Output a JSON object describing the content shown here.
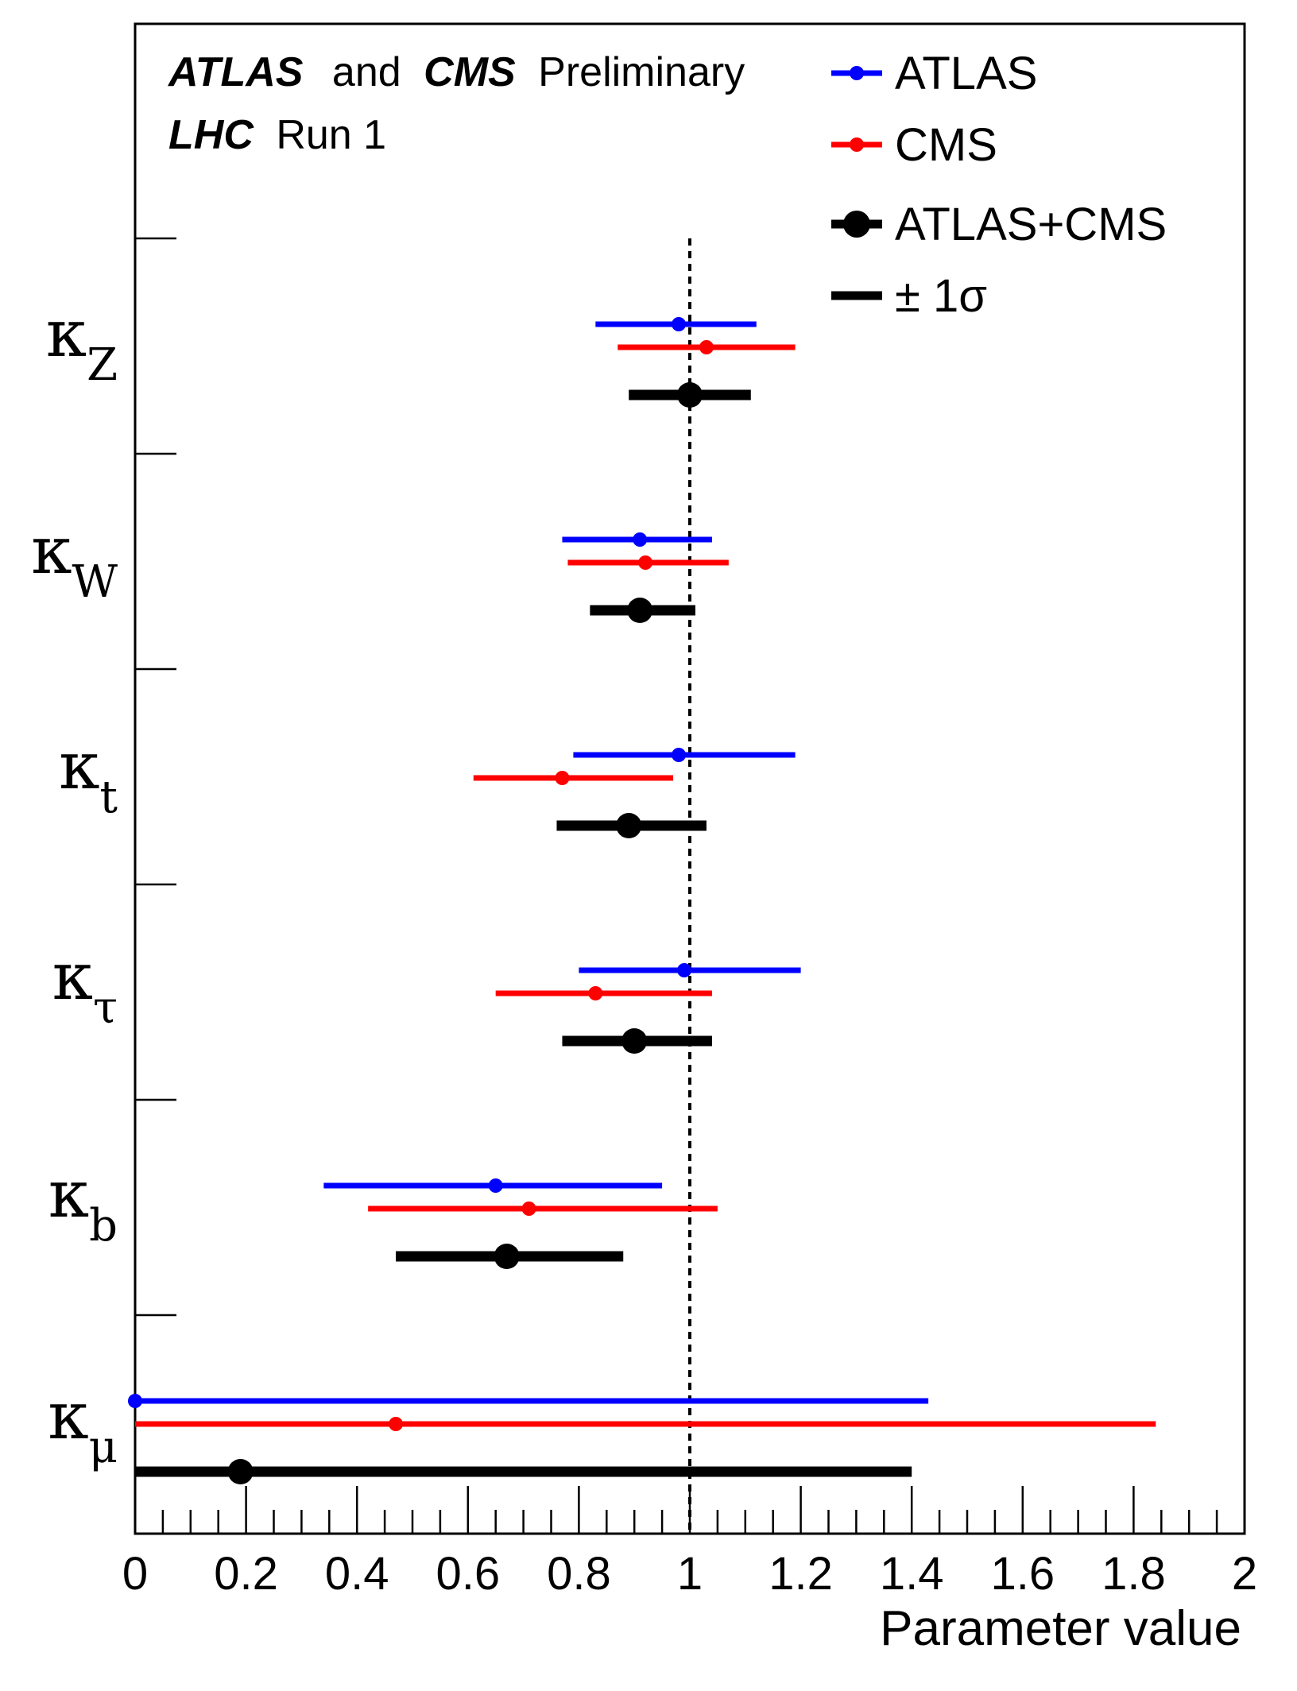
{
  "header": {
    "line1": {
      "atlas": "ATLAS",
      "and": "and",
      "cms": "CMS",
      "preliminary": "Preliminary"
    },
    "line2": {
      "lhc": "LHC",
      "run": "Run 1"
    }
  },
  "legend": [
    {
      "label": "ATLAS",
      "color": "#0000ff"
    },
    {
      "label": "CMS",
      "color": "#ff0000"
    },
    {
      "label": "ATLAS+CMS",
      "color": "#000000"
    },
    {
      "label": "± 1σ",
      "color": "#000000"
    }
  ],
  "chart_data": {
    "type": "scatter",
    "style": "horizontal error bars per parameter",
    "xlabel": "Parameter value",
    "xlim": [
      0,
      2
    ],
    "x_ticks": [
      "0",
      "0.2",
      "0.4",
      "0.6",
      "0.8",
      "1",
      "1.2",
      "1.4",
      "1.6",
      "1.8",
      "2"
    ],
    "reference_line": 1,
    "categories": [
      {
        "symbol": "κ",
        "sub": "Z"
      },
      {
        "symbol": "κ",
        "sub": "W"
      },
      {
        "symbol": "κ",
        "sub": "t"
      },
      {
        "symbol": "κ",
        "sub": "τ"
      },
      {
        "symbol": "κ",
        "sub": "b"
      },
      {
        "symbol": "κ",
        "sub": "μ"
      }
    ],
    "series": [
      {
        "name": "ATLAS",
        "color": "#0000ff",
        "points": [
          {
            "value": 0.98,
            "lo": 0.83,
            "hi": 1.12
          },
          {
            "value": 0.91,
            "lo": 0.77,
            "hi": 1.04
          },
          {
            "value": 0.98,
            "lo": 0.79,
            "hi": 1.19
          },
          {
            "value": 0.99,
            "lo": 0.8,
            "hi": 1.2
          },
          {
            "value": 0.65,
            "lo": 0.34,
            "hi": 0.95
          },
          {
            "value": 0.0,
            "lo": 0.0,
            "hi": 1.43
          }
        ]
      },
      {
        "name": "CMS",
        "color": "#ff0000",
        "points": [
          {
            "value": 1.03,
            "lo": 0.87,
            "hi": 1.19
          },
          {
            "value": 0.92,
            "lo": 0.78,
            "hi": 1.07
          },
          {
            "value": 0.77,
            "lo": 0.61,
            "hi": 0.97
          },
          {
            "value": 0.83,
            "lo": 0.65,
            "hi": 1.04
          },
          {
            "value": 0.71,
            "lo": 0.42,
            "hi": 1.05
          },
          {
            "value": 0.47,
            "lo": 0.0,
            "hi": 1.84
          }
        ]
      },
      {
        "name": "ATLAS+CMS",
        "color": "#000000",
        "points": [
          {
            "value": 1.0,
            "lo": 0.89,
            "hi": 1.11
          },
          {
            "value": 0.91,
            "lo": 0.82,
            "hi": 1.01
          },
          {
            "value": 0.89,
            "lo": 0.76,
            "hi": 1.03
          },
          {
            "value": 0.9,
            "lo": 0.77,
            "hi": 1.04
          },
          {
            "value": 0.67,
            "lo": 0.47,
            "hi": 0.88
          },
          {
            "value": 0.19,
            "lo": 0.0,
            "hi": 1.4
          }
        ]
      }
    ]
  }
}
